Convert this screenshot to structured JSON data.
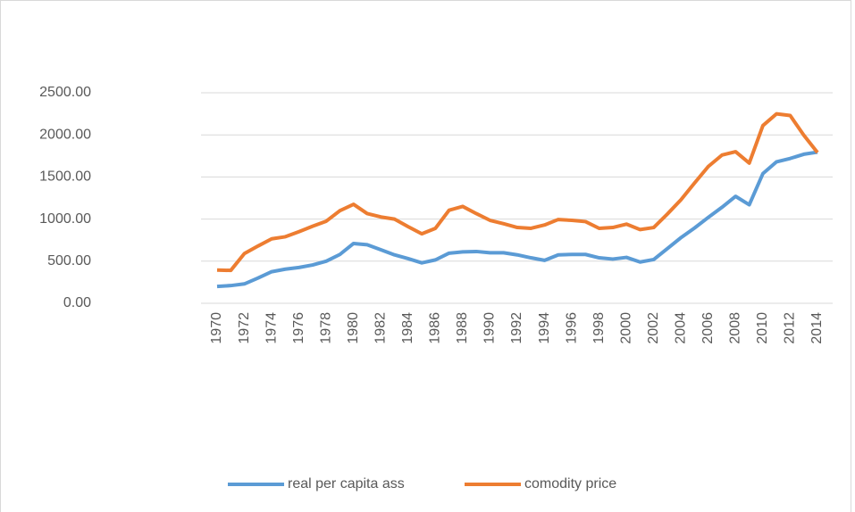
{
  "chart_data": {
    "type": "line",
    "x": [
      1970,
      1971,
      1972,
      1973,
      1974,
      1975,
      1976,
      1977,
      1978,
      1979,
      1980,
      1981,
      1982,
      1983,
      1984,
      1985,
      1986,
      1987,
      1988,
      1989,
      1990,
      1991,
      1992,
      1993,
      1994,
      1995,
      1996,
      1997,
      1998,
      1999,
      2000,
      2001,
      2002,
      2003,
      2004,
      2005,
      2006,
      2007,
      2008,
      2009,
      2010,
      2011,
      2012,
      2013,
      2014
    ],
    "xlim": [
      1970,
      2014
    ],
    "xticks": [
      1970,
      1972,
      1974,
      1976,
      1978,
      1980,
      1982,
      1984,
      1986,
      1988,
      1990,
      1992,
      1994,
      1996,
      1998,
      2000,
      2002,
      2004,
      2006,
      2008,
      2010,
      2012,
      2014
    ],
    "ylim": [
      0,
      2500
    ],
    "yticks": [
      {
        "value": 0,
        "label": "0.00"
      },
      {
        "value": 500,
        "label": "500.00"
      },
      {
        "value": 1000,
        "label": "1000.00"
      },
      {
        "value": 1500,
        "label": "1500.00"
      },
      {
        "value": 2000,
        "label": "2000.00"
      },
      {
        "value": 2500,
        "label": "2500.00"
      }
    ],
    "grid": true,
    "legend": "bottom",
    "series": [
      {
        "name": "real per capita ass",
        "color": "#5b9bd5",
        "values": [
          200,
          210,
          230,
          300,
          375,
          405,
          425,
          455,
          500,
          580,
          710,
          695,
          635,
          575,
          530,
          480,
          515,
          595,
          610,
          615,
          600,
          600,
          575,
          540,
          510,
          575,
          580,
          580,
          540,
          525,
          545,
          490,
          520,
          650,
          780,
          895,
          1020,
          1140,
          1270,
          1170,
          1540,
          1680,
          1720,
          1770,
          1795
        ]
      },
      {
        "name": "comodity price",
        "color": "#ed7d31",
        "values": [
          395,
          390,
          590,
          680,
          765,
          790,
          850,
          915,
          975,
          1100,
          1175,
          1065,
          1025,
          1000,
          910,
          825,
          890,
          1105,
          1150,
          1065,
          985,
          945,
          900,
          890,
          930,
          995,
          985,
          970,
          890,
          900,
          940,
          875,
          900,
          1060,
          1230,
          1430,
          1625,
          1760,
          1800,
          1665,
          2110,
          2250,
          2230,
          1995,
          1790
        ]
      }
    ]
  }
}
